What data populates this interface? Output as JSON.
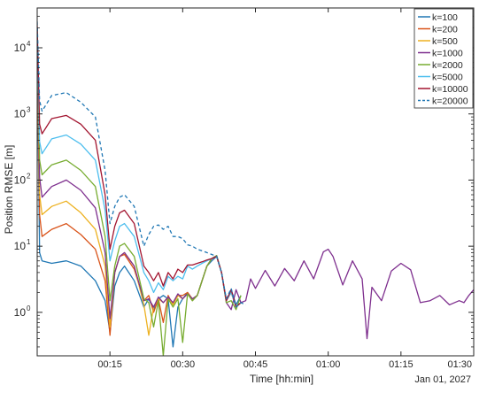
{
  "chart_data": {
    "type": "line",
    "title": "",
    "xlabel": "Time [hh:min]",
    "ylabel": "Position RMSE [m]",
    "date_label": "Jan 01, 2027",
    "x_unit": "minutes",
    "xlim": [
      0,
      90
    ],
    "ylim": [
      0.22,
      40000
    ],
    "y_scale": "log",
    "x_ticks": [
      {
        "value": 15,
        "label": "00:15"
      },
      {
        "value": 30,
        "label": "00:30"
      },
      {
        "value": 45,
        "label": "00:45"
      },
      {
        "value": 60,
        "label": "01:00"
      },
      {
        "value": 75,
        "label": "01:15"
      },
      {
        "value": 90,
        "label": "01:30"
      }
    ],
    "y_ticks": [
      {
        "value": 1,
        "base": "10",
        "exp": "0"
      },
      {
        "value": 10,
        "base": "10",
        "exp": "1"
      },
      {
        "value": 100,
        "base": "10",
        "exp": "2"
      },
      {
        "value": 1000,
        "base": "10",
        "exp": "3"
      },
      {
        "value": 10000,
        "base": "10",
        "exp": "4"
      }
    ],
    "legend_position": "top-right",
    "grid": false,
    "series": [
      {
        "name": "k=100",
        "color": "#1f77b4",
        "dash": false,
        "x": [
          0,
          0.5,
          1,
          3,
          6,
          9,
          12,
          14,
          15,
          16,
          17,
          18,
          20,
          22,
          23,
          24,
          25,
          26,
          27,
          28,
          29,
          30,
          31,
          32,
          33,
          34,
          35,
          36,
          37,
          38,
          39,
          40,
          41,
          42
        ],
        "y": [
          10000,
          8,
          6,
          5.5,
          6,
          5,
          3,
          1.5,
          0.5,
          2.5,
          4,
          5,
          3,
          1.2,
          1.6,
          1.1,
          1.6,
          1.8,
          1.6,
          0.3,
          1.2,
          1.6,
          2,
          1.5,
          1.8,
          3,
          5,
          6,
          7,
          4,
          1.5,
          2.2,
          1.3,
          1.8
        ]
      },
      {
        "name": "k=200",
        "color": "#d95319",
        "dash": false,
        "x": [
          0,
          0.5,
          1,
          3,
          6,
          9,
          12,
          14,
          15,
          16,
          17,
          18,
          20,
          22,
          23,
          24,
          25,
          26,
          27,
          28,
          29,
          30,
          31,
          32,
          33,
          34,
          35,
          36,
          37,
          38,
          39,
          40,
          41,
          42
        ],
        "y": [
          12000,
          30,
          14,
          18,
          22,
          15,
          9,
          3,
          0.45,
          4,
          7,
          7.5,
          4.5,
          1.5,
          1.8,
          1,
          1.6,
          0.7,
          1.8,
          1.3,
          1.8,
          1.8,
          2,
          1.6,
          1.8,
          3,
          5,
          6.5,
          7,
          4,
          1.5,
          2,
          1.2,
          1.4
        ]
      },
      {
        "name": "k=500",
        "color": "#edb120",
        "dash": false,
        "x": [
          0,
          0.5,
          1,
          3,
          6,
          9,
          12,
          14,
          15,
          16,
          17,
          18,
          20,
          22,
          23,
          24,
          25,
          26,
          27,
          28,
          29,
          30,
          31,
          32,
          33,
          34,
          35,
          36,
          37,
          38,
          39,
          40,
          41,
          42
        ],
        "y": [
          14000,
          60,
          30,
          40,
          48,
          32,
          18,
          5,
          0.6,
          4,
          7,
          8,
          5,
          1.3,
          0.45,
          1.2,
          1.6,
          1.4,
          1.7,
          1.3,
          1.8,
          1.6,
          1.9,
          1.5,
          1.8,
          3,
          5,
          6.5,
          7.2,
          4,
          1.5,
          2,
          1.2,
          1.4
        ]
      },
      {
        "name": "k=1000",
        "color": "#7e2f8e",
        "dash": false,
        "x": [
          0,
          0.5,
          1,
          3,
          6,
          9,
          12,
          14,
          15,
          16,
          17,
          18,
          20,
          22,
          23,
          24,
          25,
          26,
          27,
          28,
          29,
          30,
          31,
          32,
          33,
          34,
          35,
          36,
          37,
          38,
          39,
          40,
          41,
          42,
          43,
          44,
          45,
          47,
          49,
          51,
          53,
          55,
          57,
          59,
          60,
          61,
          63,
          65,
          67,
          68,
          69,
          71,
          73,
          75,
          77,
          79,
          81,
          83,
          85,
          87,
          88,
          89,
          90
        ],
        "y": [
          16000,
          110,
          55,
          80,
          100,
          70,
          38,
          8,
          0.8,
          4,
          7,
          8,
          5,
          1.5,
          1.6,
          1.2,
          1.7,
          1.4,
          1.7,
          1.4,
          1.9,
          1.6,
          1.9,
          1.6,
          1.8,
          3,
          5,
          6.5,
          7.2,
          4,
          1.4,
          1.1,
          2.2,
          1.4,
          1.5,
          3.2,
          2.3,
          4.3,
          2.5,
          4.6,
          3,
          6,
          3.2,
          8.2,
          9,
          7,
          2.6,
          6,
          3.2,
          0.4,
          2.4,
          1.5,
          4.2,
          5.5,
          4.4,
          1.4,
          1.5,
          1.8,
          1.3,
          1.5,
          1.4,
          1.8,
          2.2
        ]
      },
      {
        "name": "k=2000",
        "color": "#77ac30",
        "dash": false,
        "x": [
          0,
          0.5,
          1,
          3,
          6,
          9,
          12,
          14,
          15,
          16,
          17,
          18,
          20,
          22,
          23,
          24,
          25,
          26,
          27,
          28,
          29,
          30,
          31,
          32,
          33,
          34,
          35,
          36,
          37,
          38,
          39,
          40,
          41,
          42
        ],
        "y": [
          18000,
          200,
          120,
          170,
          200,
          140,
          80,
          14,
          1.5,
          5,
          10,
          11,
          7,
          1.6,
          1.4,
          0.6,
          1.5,
          0.22,
          1.6,
          1.2,
          1.6,
          0.35,
          1.9,
          1.5,
          1.8,
          3,
          5,
          6.5,
          7.2,
          4,
          1.4,
          1.5,
          1.1,
          1.8
        ]
      },
      {
        "name": "k=5000",
        "color": "#4dbeee",
        "dash": false,
        "x": [
          0,
          0.5,
          1,
          3,
          6,
          9,
          12,
          14,
          15,
          16,
          17,
          18,
          20,
          22,
          23,
          24,
          25,
          26,
          27,
          28,
          29,
          30,
          31,
          32,
          33,
          34,
          35,
          36,
          37,
          38,
          39,
          40,
          41,
          42
        ],
        "y": [
          20000,
          380,
          250,
          420,
          480,
          350,
          200,
          35,
          6,
          12,
          20,
          22,
          14,
          4,
          3,
          2,
          2.8,
          2.2,
          3.5,
          3,
          3.5,
          3.2,
          5,
          4.5,
          5,
          5.5,
          6,
          6.5,
          7,
          4,
          1.5,
          2,
          1.2,
          1.4
        ]
      },
      {
        "name": "k=10000",
        "color": "#a2142f",
        "dash": false,
        "x": [
          0,
          0.5,
          1,
          3,
          6,
          9,
          12,
          14,
          15,
          16,
          17,
          18,
          20,
          22,
          23,
          24,
          25,
          26,
          27,
          28,
          29,
          30,
          31,
          32,
          33,
          34,
          35,
          36,
          37,
          38,
          39,
          40,
          41,
          42
        ],
        "y": [
          22000,
          700,
          500,
          850,
          950,
          700,
          400,
          60,
          9,
          20,
          32,
          35,
          22,
          5,
          4,
          3,
          4,
          2.5,
          4,
          3.2,
          4.5,
          4,
          5.2,
          5.2,
          5.5,
          5.8,
          6.2,
          6.5,
          7,
          4,
          1.5,
          2.2,
          1.2,
          1.4
        ]
      },
      {
        "name": "k=20000",
        "color": "#1f77b4",
        "dash": true,
        "x": [
          0,
          0.5,
          1,
          3,
          6,
          9,
          12,
          14,
          15,
          16,
          17,
          18,
          20,
          22,
          23,
          24,
          25,
          26,
          27,
          28,
          29,
          30,
          31,
          32,
          33,
          34,
          35,
          36,
          37,
          38,
          39,
          40,
          41,
          42,
          43
        ],
        "y": [
          25000,
          1600,
          1100,
          1900,
          2100,
          1500,
          900,
          140,
          22,
          40,
          55,
          60,
          40,
          10,
          15,
          20,
          21,
          18,
          20,
          14,
          14,
          13,
          10.5,
          10,
          9,
          8.5,
          8,
          7.5,
          7,
          4,
          1.6,
          2.3,
          1.2,
          1.4,
          1.3
        ]
      }
    ]
  }
}
